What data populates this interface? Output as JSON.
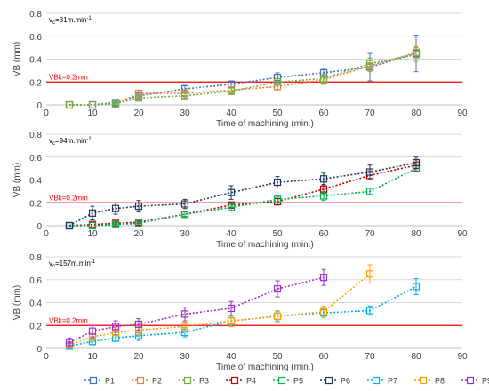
{
  "figure": {
    "legend_position": "bottom",
    "threshold_label": "VBk=0.2mm",
    "threshold_color": "#ff0000"
  },
  "chart_data": [
    {
      "type": "line",
      "speed_label": "v",
      "speed_sub": "c",
      "speed_value": "=31m.min",
      "speed_exp": "-1",
      "xlabel": "Time of machining (min.)",
      "ylabel": "VB (mm)",
      "xlim": [
        0,
        90
      ],
      "ylim": [
        0,
        0.8
      ],
      "xticks": [
        "0",
        "10",
        "20",
        "30",
        "40",
        "50",
        "60",
        "70",
        "80",
        "90"
      ],
      "yticks": [
        "0",
        "0.2",
        "0.4",
        "0.6",
        "0.8"
      ],
      "threshold": 0.2,
      "series": [
        {
          "name": "P1",
          "color": "#4472c4",
          "x": [
            5,
            10,
            15,
            20,
            30,
            40,
            50,
            60,
            70,
            80
          ],
          "y": [
            0,
            0,
            0.02,
            0.08,
            0.14,
            0.18,
            0.24,
            0.28,
            0.33,
            0.45
          ],
          "err": [
            0,
            0,
            0.01,
            0.02,
            0.03,
            0.03,
            0.04,
            0.04,
            0.12,
            0.16
          ]
        },
        {
          "name": "P2",
          "color": "#ed7d31",
          "x": [
            5,
            10,
            15,
            20,
            30,
            40,
            50,
            60,
            70,
            80
          ],
          "y": [
            0,
            0,
            0.01,
            0.1,
            0.1,
            0.13,
            0.16,
            0.22,
            0.34,
            0.46
          ],
          "err": [
            0,
            0,
            0.01,
            0.03,
            0.02,
            0.02,
            0.03,
            0.04,
            0.05,
            0.05
          ]
        },
        {
          "name": "P3",
          "color": "#70ad47",
          "x": [
            5,
            10,
            15,
            20,
            30,
            40,
            50,
            60,
            70,
            80
          ],
          "y": [
            0,
            0,
            0.01,
            0.06,
            0.08,
            0.12,
            0.2,
            0.23,
            0.36,
            0.44
          ],
          "err": [
            0,
            0,
            0.01,
            0.02,
            0.02,
            0.03,
            0.03,
            0.04,
            0.05,
            0.06
          ]
        }
      ]
    },
    {
      "type": "line",
      "speed_label": "v",
      "speed_sub": "c",
      "speed_value": "=94m.min",
      "speed_exp": "-1",
      "xlabel": "Time of machining (min.)",
      "ylabel": "VB (mm)",
      "xlim": [
        0,
        90
      ],
      "ylim": [
        0,
        0.8
      ],
      "xticks": [
        "0",
        "10",
        "20",
        "30",
        "40",
        "50",
        "60",
        "70",
        "80",
        "90"
      ],
      "yticks": [
        "0",
        "0.2",
        "0.4",
        "0.6",
        "0.8"
      ],
      "threshold": 0.2,
      "series": [
        {
          "name": "P4",
          "color": "#c00000",
          "x": [
            5,
            10,
            15,
            20,
            30,
            40,
            50,
            60,
            70,
            80
          ],
          "y": [
            0,
            0.01,
            0.02,
            0.03,
            0.1,
            0.18,
            0.21,
            0.32,
            0.44,
            0.53
          ],
          "err": [
            0,
            0,
            0.01,
            0.01,
            0.02,
            0.02,
            0.03,
            0.04,
            0.04,
            0.05
          ]
        },
        {
          "name": "P5",
          "color": "#00b050",
          "x": [
            5,
            10,
            15,
            20,
            30,
            40,
            50,
            60,
            70,
            80
          ],
          "y": [
            0,
            0,
            0.01,
            0.02,
            0.1,
            0.16,
            0.23,
            0.26,
            0.3,
            0.5
          ],
          "err": [
            0,
            0,
            0.01,
            0.01,
            0.02,
            0.03,
            0.03,
            0.04,
            0.03,
            0.03
          ]
        },
        {
          "name": "P6",
          "color": "#203864",
          "x": [
            5,
            10,
            15,
            20,
            30,
            40,
            50,
            60,
            70,
            80
          ],
          "y": [
            0,
            0.11,
            0.15,
            0.17,
            0.19,
            0.29,
            0.38,
            0.41,
            0.47,
            0.55
          ],
          "err": [
            0,
            0.06,
            0.05,
            0.05,
            0.04,
            0.06,
            0.05,
            0.05,
            0.06,
            0.05
          ]
        }
      ]
    },
    {
      "type": "line",
      "speed_label": "v",
      "speed_sub": "c",
      "speed_value": "=157m.min",
      "speed_exp": "-1",
      "xlabel": "Time of machining (min.)",
      "ylabel": "VB (mm)",
      "xlim": [
        0,
        90
      ],
      "ylim": [
        0,
        0.8
      ],
      "xticks": [
        "0",
        "10",
        "20",
        "30",
        "40",
        "50",
        "60",
        "70",
        "80",
        "90"
      ],
      "yticks": [
        "0",
        "0.2",
        "0.4",
        "0.6",
        "0.8"
      ],
      "threshold": 0.2,
      "series": [
        {
          "name": "P7",
          "color": "#00b0f0",
          "x": [
            5,
            10,
            15,
            20,
            30,
            40,
            50,
            60,
            70,
            80
          ],
          "y": [
            0.02,
            0.06,
            0.09,
            0.11,
            0.14,
            0.24,
            0.28,
            0.31,
            0.33,
            0.54
          ],
          "err": [
            0.02,
            0.03,
            0.03,
            0.04,
            0.04,
            0.04,
            0.04,
            0.04,
            0.04,
            0.07
          ]
        },
        {
          "name": "P8",
          "color": "#ffa000",
          "x": [
            5,
            10,
            15,
            20,
            30,
            40,
            50,
            60,
            70
          ],
          "y": [
            0.03,
            0.1,
            0.14,
            0.16,
            0.19,
            0.24,
            0.28,
            0.32,
            0.65
          ],
          "err": [
            0.02,
            0.03,
            0.04,
            0.04,
            0.04,
            0.05,
            0.05,
            0.05,
            0.08
          ]
        },
        {
          "name": "P9",
          "color": "#9933cc",
          "x": [
            5,
            10,
            15,
            20,
            30,
            40,
            50,
            60
          ],
          "y": [
            0.05,
            0.15,
            0.19,
            0.21,
            0.3,
            0.35,
            0.52,
            0.62
          ],
          "err": [
            0.04,
            0.05,
            0.05,
            0.05,
            0.06,
            0.06,
            0.07,
            0.07
          ]
        }
      ]
    }
  ]
}
